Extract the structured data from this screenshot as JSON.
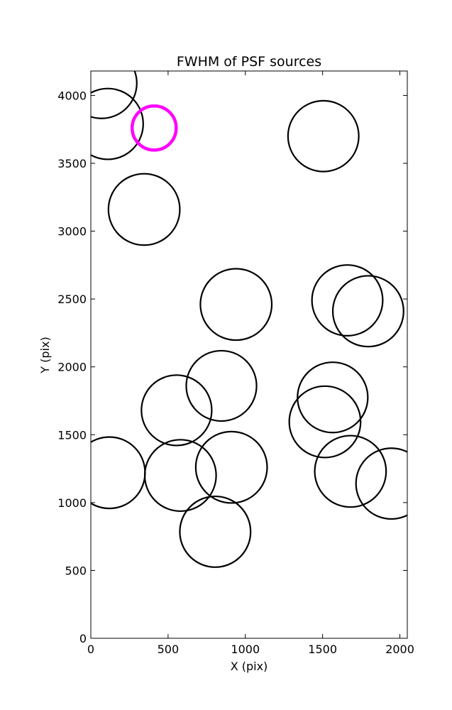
{
  "chart_data": {
    "type": "scatter",
    "title": "FWHM of PSF sources",
    "xlabel": "X (pix)",
    "ylabel": "Y (pix)",
    "xlim": [
      0,
      2048
    ],
    "ylim": [
      0,
      4180
    ],
    "xticks": [
      0,
      500,
      1000,
      1500,
      2000
    ],
    "yticks": [
      0,
      500,
      1000,
      1500,
      2000,
      2500,
      3000,
      3500,
      4000
    ],
    "grid": false,
    "series": [
      {
        "marker": "circle-outline",
        "color": "#000000",
        "points": [
          {
            "x": 70,
            "y": 4090,
            "fwhm": 455
          },
          {
            "x": 110,
            "y": 3790,
            "fwhm": 458
          },
          {
            "x": 345,
            "y": 3160,
            "fwhm": 462
          },
          {
            "x": 1505,
            "y": 3700,
            "fwhm": 458
          },
          {
            "x": 940,
            "y": 2460,
            "fwhm": 462
          },
          {
            "x": 1660,
            "y": 2490,
            "fwhm": 458
          },
          {
            "x": 1795,
            "y": 2410,
            "fwhm": 458
          },
          {
            "x": 845,
            "y": 1860,
            "fwhm": 455
          },
          {
            "x": 555,
            "y": 1680,
            "fwhm": 455
          },
          {
            "x": 1565,
            "y": 1775,
            "fwhm": 455
          },
          {
            "x": 1515,
            "y": 1595,
            "fwhm": 462
          },
          {
            "x": 120,
            "y": 1220,
            "fwhm": 462
          },
          {
            "x": 580,
            "y": 1200,
            "fwhm": 462
          },
          {
            "x": 910,
            "y": 1260,
            "fwhm": 462
          },
          {
            "x": 1680,
            "y": 1230,
            "fwhm": 462
          },
          {
            "x": 1945,
            "y": 1140,
            "fwhm": 458
          },
          {
            "x": 805,
            "y": 785,
            "fwhm": 458
          }
        ]
      },
      {
        "marker": "circle-outline",
        "color": "#ff00ff",
        "points": [
          {
            "x": 410,
            "y": 3760,
            "fwhm": 285
          }
        ]
      }
    ]
  }
}
